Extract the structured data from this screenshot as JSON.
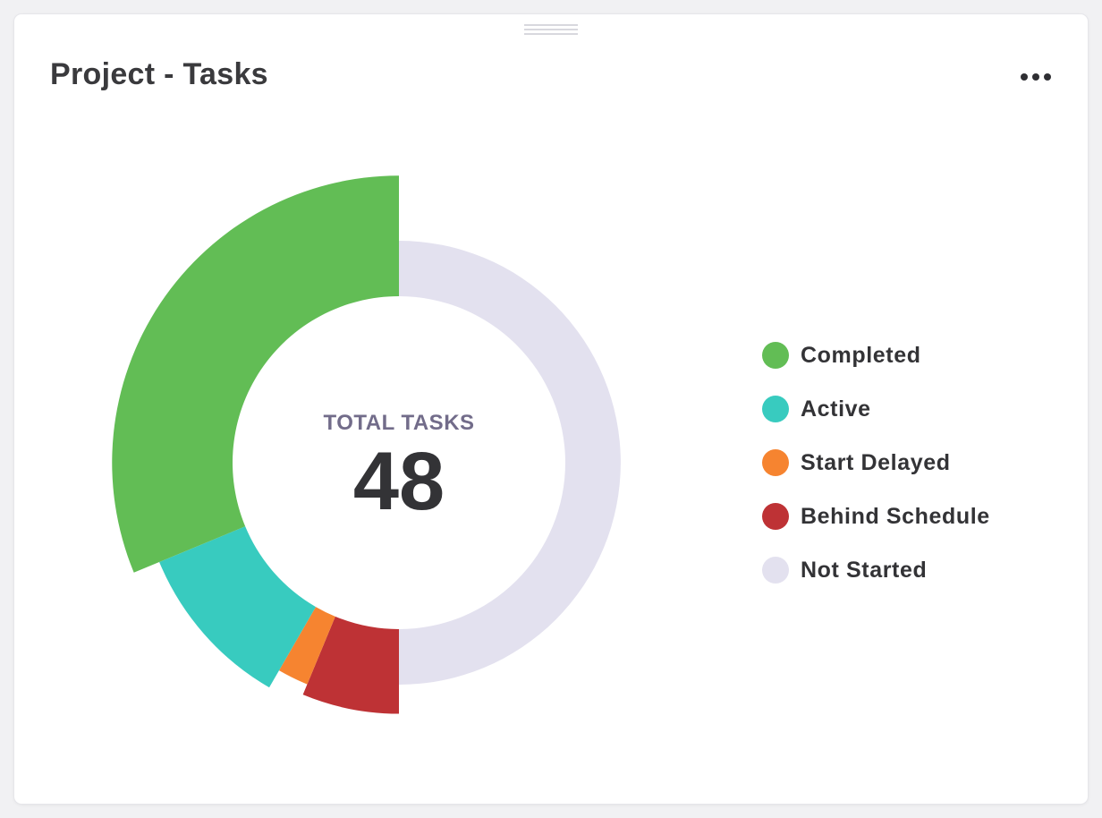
{
  "widget": {
    "title": "Project - Tasks"
  },
  "center": {
    "label": "TOTAL TASKS",
    "value": "48"
  },
  "colors": {
    "Completed": "#62bd55",
    "Active": "#38cbbf",
    "Start Delayed": "#f68430",
    "Behind Schedule": "#be3235",
    "Not Started": "#e3e1ef"
  },
  "chart_data": {
    "type": "pie",
    "variant": "donut-variable-radius",
    "total": 48,
    "center_label": "TOTAL TASKS",
    "legend_position": "right",
    "categories": [
      "Completed",
      "Active",
      "Start Delayed",
      "Behind Schedule",
      "Not Started"
    ],
    "values": [
      15,
      5,
      1,
      3,
      24
    ]
  }
}
